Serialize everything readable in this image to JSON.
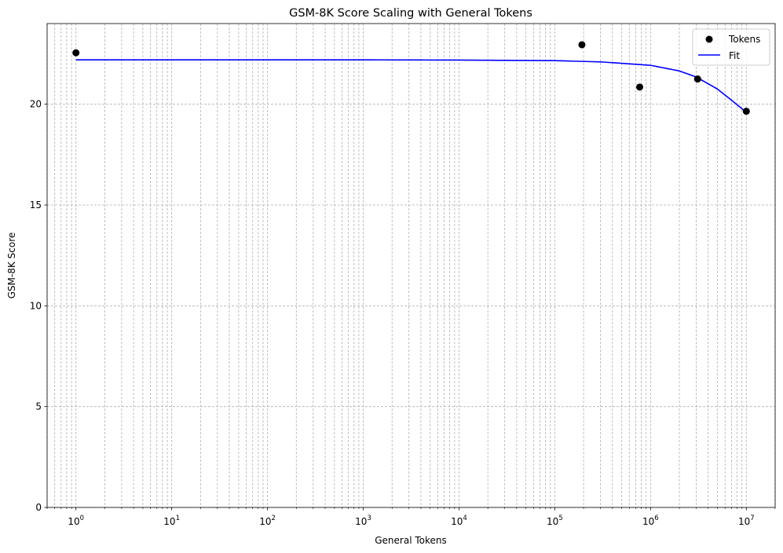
{
  "chart_data": {
    "type": "scatter",
    "title": "GSM-8K Score Scaling with General Tokens",
    "xlabel": "General Tokens",
    "ylabel": "GSM-8K Score",
    "x_scale": "log",
    "xlim": [
      0.5,
      20000000
    ],
    "ylim": [
      0,
      24
    ],
    "x_ticks": [
      1,
      10,
      100,
      1000,
      10000,
      100000,
      1000000,
      10000000
    ],
    "x_tick_labels": [
      {
        "base": "10",
        "exp": "0"
      },
      {
        "base": "10",
        "exp": "1"
      },
      {
        "base": "10",
        "exp": "2"
      },
      {
        "base": "10",
        "exp": "3"
      },
      {
        "base": "10",
        "exp": "4"
      },
      {
        "base": "10",
        "exp": "5"
      },
      {
        "base": "10",
        "exp": "6"
      },
      {
        "base": "10",
        "exp": "7"
      }
    ],
    "y_ticks": [
      0,
      5,
      10,
      15,
      20
    ],
    "y_tick_labels": [
      "0",
      "5",
      "10",
      "15",
      "20"
    ],
    "grid": true,
    "grid_minor": true,
    "legend_position": "top-right",
    "series": [
      {
        "name": "Tokens",
        "kind": "scatter",
        "color": "#000000",
        "x": [
          1,
          192000,
          770000,
          3100000,
          10000000
        ],
        "y": [
          22.55,
          22.95,
          20.85,
          21.25,
          19.65
        ]
      },
      {
        "name": "Fit",
        "kind": "line",
        "color": "#0000ff",
        "x": [
          1,
          10,
          100,
          1000,
          10000,
          100000,
          300000,
          1000000,
          2000000,
          3000000,
          5000000,
          7000000,
          10000000
        ],
        "y": [
          22.2,
          22.2,
          22.2,
          22.2,
          22.19,
          22.16,
          22.1,
          21.93,
          21.65,
          21.35,
          20.75,
          20.2,
          19.6
        ]
      }
    ]
  }
}
